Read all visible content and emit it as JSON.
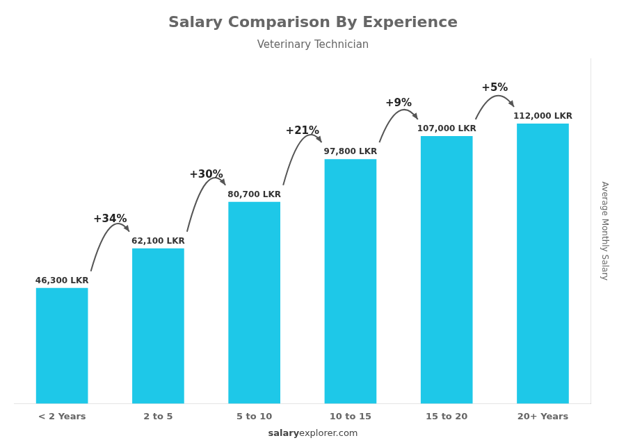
{
  "chart_data": {
    "type": "bar",
    "title": "Salary Comparison By Experience",
    "subtitle": "Veterinary Technician",
    "y_label": "Average Monthly Salary",
    "footer": [
      "salary",
      "explorer.com"
    ],
    "categories": [
      "< 2 Years",
      "2 to 5",
      "5 to 10",
      "10 to 15",
      "15 to 20",
      "20+ Years"
    ],
    "values": [
      46300,
      62100,
      80700,
      97800,
      107000,
      112000
    ],
    "value_labels": [
      "46,300 LKR",
      "62,100 LKR",
      "80,700 LKR",
      "97,800 LKR",
      "107,000 LKR",
      "112,000 LKR"
    ],
    "data_labels": true,
    "annotations": [
      "+34%",
      "+30%",
      "+21%",
      "+9%",
      "+5%"
    ],
    "color": "#1ec8e8",
    "ylim": [
      0,
      138000
    ],
    "grid": false,
    "tick_labels": "x"
  }
}
